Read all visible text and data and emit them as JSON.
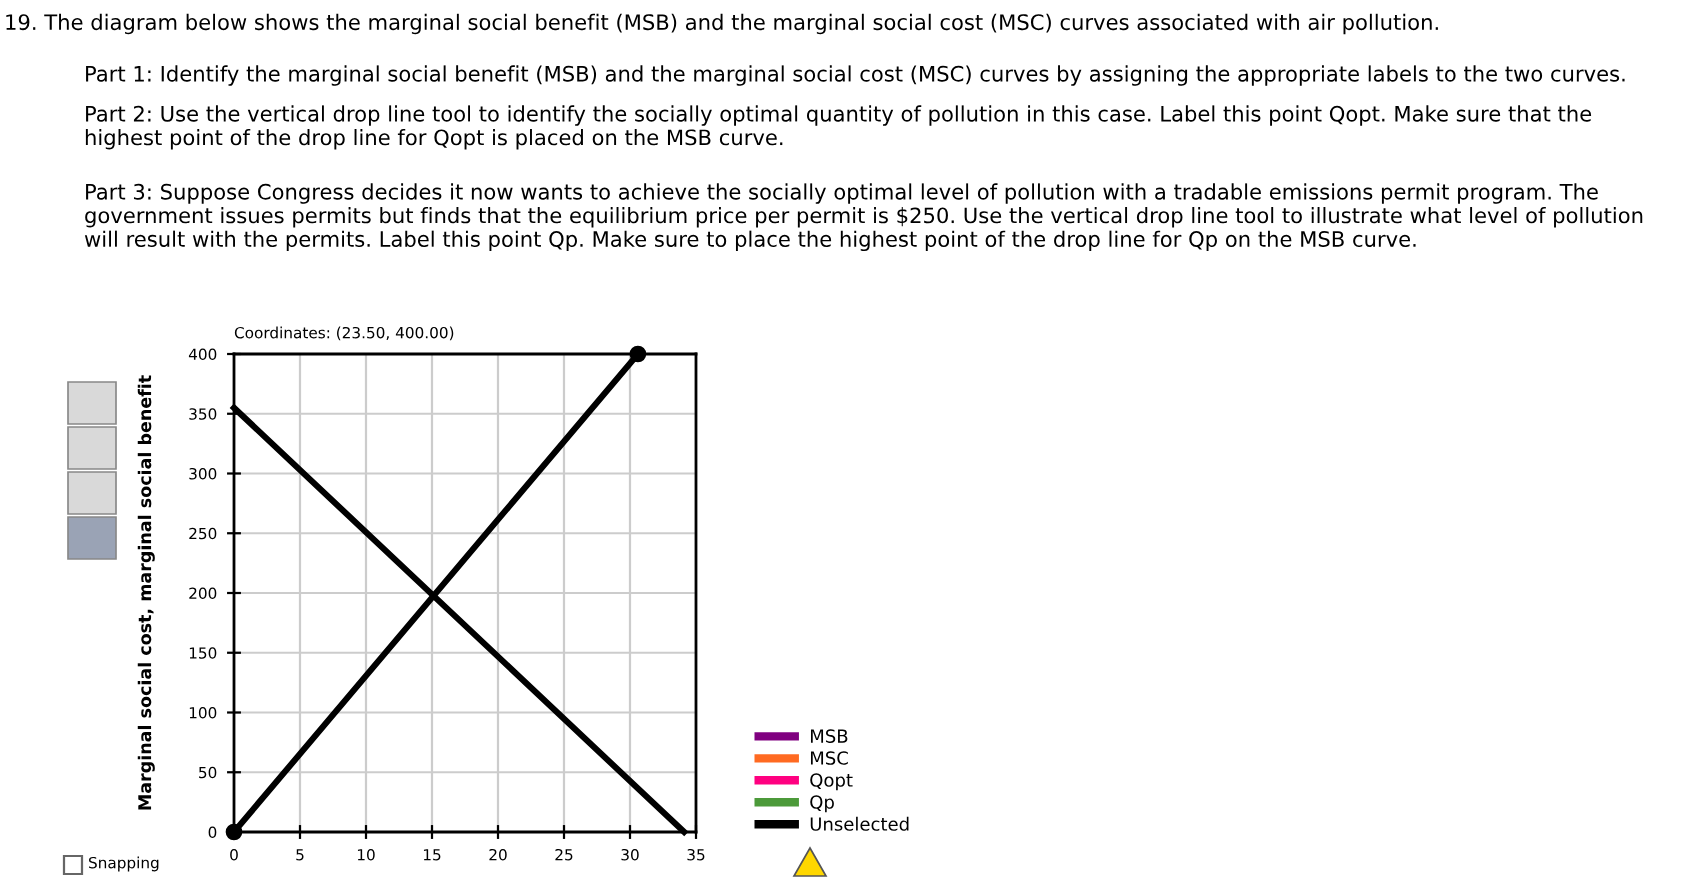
{
  "chart_data": {
    "type": "line",
    "title": "19. The diagram below shows the marginal social benefit (MSB) and the marginal social cost (MSC) curves associated with air pollution.",
    "annotations": [
      "Part 1: Identify the marginal social benefit (MSB) and the marginal social cost (MSC) curves by assigning the appropriate labels to the two curves.",
      "Part 2: Use the vertical drop line tool to identify the socially optimal quantity of pollution in this case. Label this point Qopt. Make sure that the\nhighest point of the drop line for Qopt is placed on the MSB curve.",
      "Part 3: Suppose Congress decides it now wants to achieve the socially optimal level of pollution with a tradable emissions permit program. The\ngovernment issues permits but finds that the equilibrium price per permit is $250. Use the vertical drop line tool to illustrate what level of pollution\nwill result with the permits. Label this point Qp. Make sure to place the highest point of the drop line for Qp on the MSB curve.",
      "Coordinates: (23.50, 400.00)",
      "Snapping"
    ],
    "ylabel": "Marginal social cost, marginal social benefit",
    "series": [
      {
        "name": "MSB",
        "color": "#800080"
      },
      {
        "name": "MSC",
        "color": "#ff6a21"
      },
      {
        "name": "Qopt",
        "color": "#ff0080"
      },
      {
        "name": "Qp",
        "color": "#4c9a3a"
      },
      {
        "name": "Unselected",
        "color": "#000000",
        "x": [
          0,
          30.6
        ],
        "values": [
          0,
          400
        ],
        "marker": "circle"
      },
      {
        "color": "#000000",
        "x": [
          0,
          34.1
        ],
        "values": [
          355,
          0
        ],
        "marker": "none"
      }
    ],
    "xlim": [
      0,
      35
    ],
    "ylim": [
      0,
      400
    ],
    "xticks": [
      0,
      5,
      10,
      15,
      20,
      25,
      30,
      35
    ],
    "yticks": [
      0,
      50,
      100,
      150,
      200,
      250,
      300,
      350,
      400
    ],
    "grid": true,
    "legend": "right",
    "line_style": "solid"
  }
}
